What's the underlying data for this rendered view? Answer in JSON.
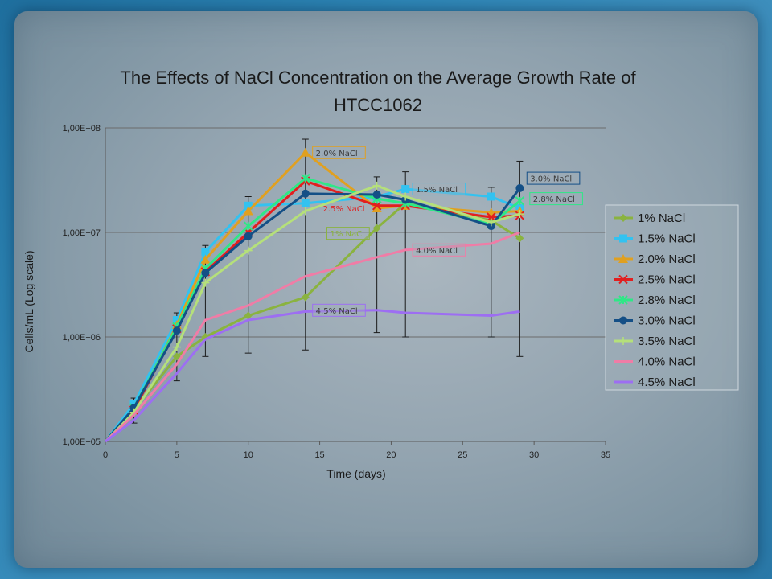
{
  "chart_data": {
    "type": "line",
    "title": [
      "The Effects of NaCl Concentration on the Average Growth Rate of",
      "HTCC1062"
    ],
    "xlabel": "Time (days)",
    "ylabel": "Cells/mL (Log scale)",
    "xlim": [
      0,
      35
    ],
    "x_ticks": [
      0,
      5,
      10,
      15,
      20,
      25,
      30,
      35
    ],
    "ylim": [
      100000,
      100000000
    ],
    "y_scale": "log",
    "y_ticks": [
      100000,
      1000000,
      10000000,
      100000000
    ],
    "y_tick_labels": [
      "1,00E+05",
      "1,00E+06",
      "1,00E+07",
      "1,00E+08"
    ],
    "grid": "horizontal",
    "legend_position": "right",
    "series": [
      {
        "name": "1% NaCl",
        "color": "#8ab33f",
        "marker": "diamond",
        "x": [
          0,
          2,
          5,
          7,
          10,
          14,
          19,
          21,
          27,
          29
        ],
        "y": [
          100000,
          200000,
          650000,
          1000000,
          1600000,
          2400000,
          11000000,
          19000000,
          13000000,
          8800000
        ]
      },
      {
        "name": "1.5% NaCl",
        "color": "#33c2f0",
        "marker": "square",
        "x": [
          0,
          2,
          5,
          7,
          10,
          14,
          19,
          21,
          27,
          29
        ],
        "y": [
          100000,
          230000,
          1450000,
          6500000,
          18000000,
          19000000,
          22000000,
          26000000,
          22000000,
          17000000
        ]
      },
      {
        "name": "2.0% NaCl",
        "color": "#e0a020",
        "marker": "triangle",
        "x": [
          0,
          2,
          5,
          7,
          10,
          14,
          19,
          21,
          27,
          29
        ],
        "y": [
          100000,
          200000,
          1300000,
          5500000,
          16000000,
          58000000,
          17000000,
          18000000,
          15500000,
          16000000
        ]
      },
      {
        "name": "2.5% NaCl",
        "color": "#e21f1f",
        "marker": "x",
        "x": [
          0,
          2,
          5,
          7,
          10,
          14,
          19,
          21,
          27,
          29
        ],
        "y": [
          100000,
          200000,
          1200000,
          4200000,
          10000000,
          31000000,
          18000000,
          18000000,
          14000000,
          14500000
        ]
      },
      {
        "name": "2.8% NaCl",
        "color": "#2ee886",
        "marker": "star",
        "x": [
          0,
          2,
          5,
          7,
          10,
          14,
          19,
          21,
          27,
          29
        ],
        "y": [
          100000,
          210000,
          1250000,
          4500000,
          11500000,
          33000000,
          21000000,
          19000000,
          12000000,
          20000000
        ]
      },
      {
        "name": "3.0% NaCl",
        "color": "#144f86",
        "marker": "circle",
        "x": [
          0,
          2,
          5,
          7,
          10,
          14,
          19,
          21,
          27,
          29
        ],
        "y": [
          100000,
          210000,
          1150000,
          4100000,
          9200000,
          23500000,
          23000000,
          20500000,
          11500000,
          26500000
        ]
      },
      {
        "name": "3.5% NaCl",
        "color": "#b5e07a",
        "marker": "plus",
        "x": [
          0,
          2,
          5,
          7,
          10,
          14,
          19,
          21,
          27,
          29
        ],
        "y": [
          100000,
          190000,
          800000,
          3300000,
          6700000,
          16000000,
          28000000,
          22000000,
          12500000,
          15000000
        ]
      },
      {
        "name": "4.0% NaCl",
        "color": "#f07ca6",
        "marker": "none",
        "x": [
          0,
          2,
          5,
          7,
          10,
          14,
          19,
          21,
          27,
          29
        ],
        "y": [
          100000,
          180000,
          550000,
          1450000,
          2000000,
          3800000,
          5800000,
          6800000,
          7800000,
          10000000
        ]
      },
      {
        "name": "4.5% NaCl",
        "color": "#9d6ef2",
        "marker": "none",
        "x": [
          0,
          2,
          5,
          7,
          10,
          14,
          19,
          21,
          27,
          29
        ],
        "y": [
          100000,
          160000,
          450000,
          950000,
          1450000,
          1750000,
          1800000,
          1700000,
          1600000,
          1750000
        ]
      }
    ],
    "error_bars": [
      {
        "x": 2,
        "low": 150000,
        "high": 260000
      },
      {
        "x": 5,
        "low": 380000,
        "high": 1700000
      },
      {
        "x": 7,
        "low": 650000,
        "high": 7500000
      },
      {
        "x": 10,
        "low": 700000,
        "high": 22000000
      },
      {
        "x": 14,
        "low": 750000,
        "high": 78000000
      },
      {
        "x": 19,
        "low": 1100000,
        "high": 34000000
      },
      {
        "x": 21,
        "low": 1000000,
        "high": 38000000
      },
      {
        "x": 27,
        "low": 1000000,
        "high": 27000000
      },
      {
        "x": 29,
        "low": 650000,
        "high": 48000000
      }
    ],
    "annotations": [
      {
        "text": "2.0% NaCl",
        "series": "2.0% NaCl",
        "x": 14.5,
        "y": 58000000,
        "color": "#3a3a3a",
        "border": "#e0a020"
      },
      {
        "text": "3.0% NaCl",
        "series": "3.0% NaCl",
        "x": 29.5,
        "y": 33000000,
        "color": "#3a3a3a",
        "border": "#144f86"
      },
      {
        "text": "1.5% NaCl",
        "series": "1.5% NaCl",
        "x": 21.5,
        "y": 26000000,
        "color": "#3a3a3a",
        "border": "#33c2f0"
      },
      {
        "text": "2.8% NaCl",
        "series": "2.8% NaCl",
        "x": 29.7,
        "y": 21000000,
        "color": "#3a3a3a",
        "border": "#2ee886"
      },
      {
        "text": "2.5% NaCl",
        "series": "2.5% NaCl",
        "x": 15.0,
        "y": 17000000,
        "color": "#e21f1f",
        "border": "none"
      },
      {
        "text": "1% NaCl",
        "series": "1% NaCl",
        "x": 15.5,
        "y": 9800000,
        "color": "#8ab33f",
        "border": "#8ab33f"
      },
      {
        "text": "4.0% NaCl",
        "series": "4.0% NaCl",
        "x": 21.5,
        "y": 6800000,
        "color": "#3a3a3a",
        "border": "#f07ca6"
      },
      {
        "text": "4.5% NaCl",
        "series": "4.5% NaCl",
        "x": 14.5,
        "y": 1800000,
        "color": "#3a3a3a",
        "border": "#9d6ef2"
      }
    ]
  }
}
